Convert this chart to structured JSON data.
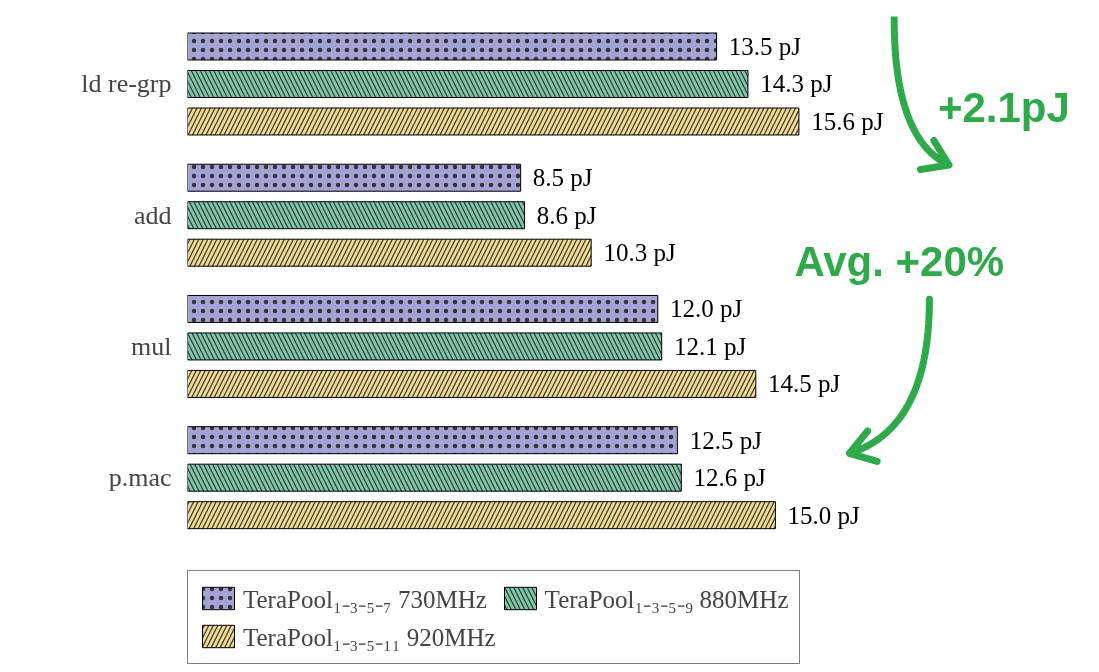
{
  "chart_data": {
    "type": "bar",
    "orientation": "horizontal",
    "categories": [
      "ld re-grp",
      "add",
      "mul",
      "p.mac"
    ],
    "series": [
      {
        "name": "TeraPool₁₋₃₋₅₋₇ 730MHz",
        "color": "#a3a3d6",
        "values": [
          13.5,
          8.5,
          12.0,
          12.5
        ],
        "value_labels": [
          "13.5 pJ",
          "8.5 pJ",
          "12.0 pJ",
          "12.5 pJ"
        ]
      },
      {
        "name": "TeraPool₁₋₃₋₅₋₉ 880MHz",
        "color": "#7cc8a8",
        "values": [
          14.3,
          8.6,
          12.1,
          12.6
        ],
        "value_labels": [
          "14.3 pJ",
          "8.6 pJ",
          "12.1 pJ",
          "12.6 pJ"
        ]
      },
      {
        "name": "TeraPool₁₋₃₋₅₋₁₁ 920MHz",
        "color": "#f0d990",
        "values": [
          15.6,
          10.3,
          14.5,
          15.0
        ],
        "value_labels": [
          "15.6 pJ",
          "10.3 pJ",
          "14.5 pJ",
          "15.0 pJ"
        ]
      }
    ],
    "annotations": [
      "+2.1pJ",
      "Avg. +20%"
    ],
    "legend": "bottom",
    "grid": false
  }
}
